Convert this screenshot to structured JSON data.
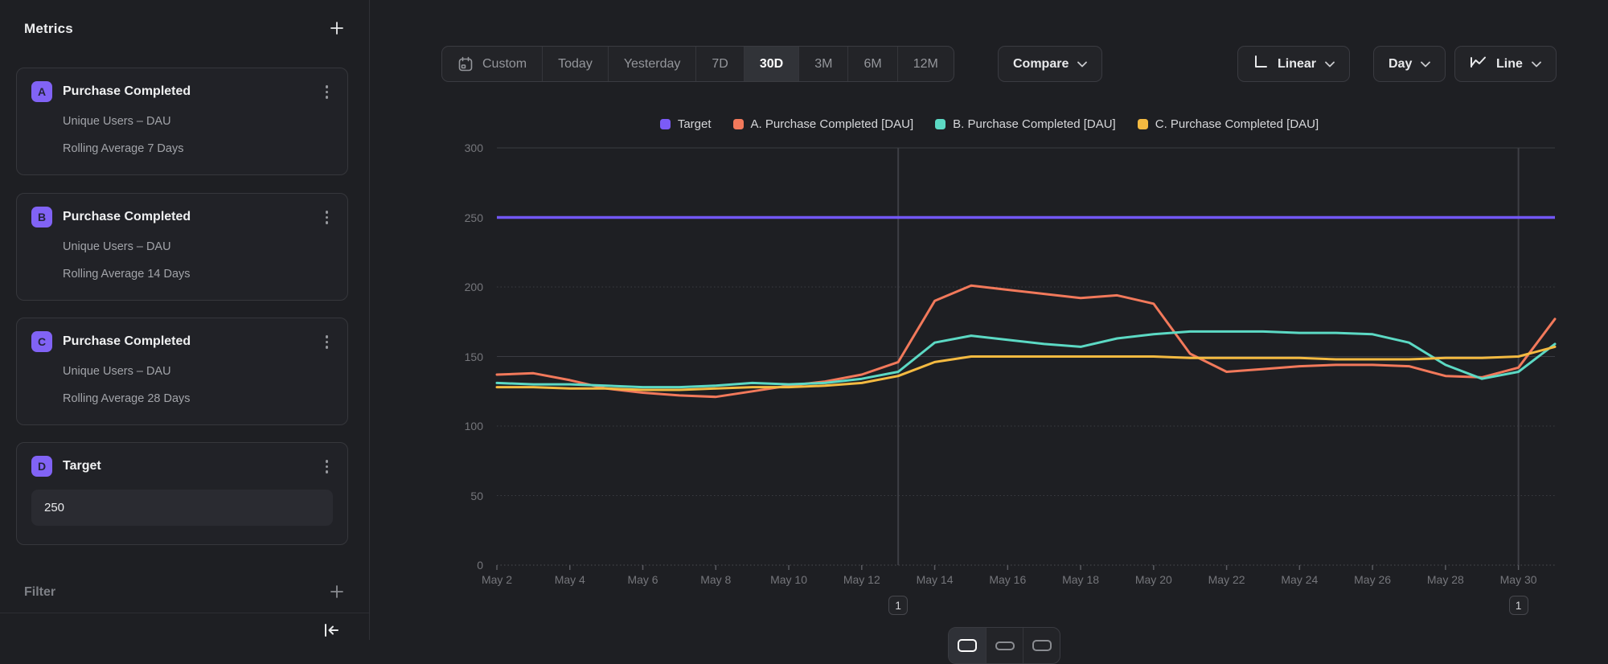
{
  "sidebar": {
    "title": "Metrics",
    "metrics": [
      {
        "letter": "A",
        "title": "Purchase Completed",
        "measure": "Unique Users – DAU",
        "transform": "Rolling Average 7 Days"
      },
      {
        "letter": "B",
        "title": "Purchase Completed",
        "measure": "Unique Users – DAU",
        "transform": "Rolling Average 14 Days"
      },
      {
        "letter": "C",
        "title": "Purchase Completed",
        "measure": "Unique Users – DAU",
        "transform": "Rolling Average 28 Days"
      }
    ],
    "target_metric": {
      "letter": "D",
      "title": "Target",
      "value": "250"
    },
    "filter_label": "Filter"
  },
  "toolbar": {
    "date_ranges": [
      "Custom",
      "Today",
      "Yesterday",
      "7D",
      "30D",
      "3M",
      "6M",
      "12M"
    ],
    "selected_range": "30D",
    "compare_label": "Compare",
    "scale_label": "Linear",
    "interval_label": "Day",
    "chart_type_label": "Line"
  },
  "colors": {
    "target": "#7257F5",
    "series_a": "#F2795B",
    "series_b": "#5CD9C4",
    "series_c": "#F4BA41"
  },
  "chart_data": {
    "type": "line",
    "x_unit": "date (May)",
    "xlim": [
      2,
      31
    ],
    "ylim": [
      0,
      300
    ],
    "y_ticks": [
      0,
      50,
      100,
      150,
      200,
      250,
      300
    ],
    "x_ticks": [
      {
        "day": 2,
        "label": "May 2"
      },
      {
        "day": 4,
        "label": "May 4"
      },
      {
        "day": 6,
        "label": "May 6"
      },
      {
        "day": 8,
        "label": "May 8"
      },
      {
        "day": 10,
        "label": "May 10"
      },
      {
        "day": 12,
        "label": "May 12"
      },
      {
        "day": 14,
        "label": "May 14"
      },
      {
        "day": 16,
        "label": "May 16"
      },
      {
        "day": 18,
        "label": "May 18"
      },
      {
        "day": 20,
        "label": "May 20"
      },
      {
        "day": 22,
        "label": "May 22"
      },
      {
        "day": 24,
        "label": "May 24"
      },
      {
        "day": 26,
        "label": "May 26"
      },
      {
        "day": 28,
        "label": "May 28"
      },
      {
        "day": 30,
        "label": "May 30"
      }
    ],
    "days": [
      2,
      3,
      4,
      5,
      6,
      7,
      8,
      9,
      10,
      11,
      12,
      13,
      14,
      15,
      16,
      17,
      18,
      19,
      20,
      21,
      22,
      23,
      24,
      25,
      26,
      27,
      28,
      29,
      30,
      31
    ],
    "target": {
      "name": "Target",
      "value": 250,
      "color": "#7257F5"
    },
    "series": [
      {
        "name": "A. Purchase Completed [DAU]",
        "color": "#F2795B",
        "values": [
          137,
          138,
          133,
          127,
          124,
          122,
          121,
          125,
          129,
          132,
          137,
          146,
          190,
          201,
          198,
          195,
          192,
          194,
          188,
          152,
          139,
          141,
          143,
          144,
          144,
          143,
          136,
          135,
          142,
          177
        ]
      },
      {
        "name": "B. Purchase Completed [DAU]",
        "color": "#5CD9C4",
        "values": [
          131,
          130,
          130,
          129,
          128,
          128,
          129,
          131,
          130,
          131,
          134,
          139,
          160,
          165,
          162,
          159,
          157,
          163,
          166,
          168,
          168,
          168,
          167,
          167,
          166,
          160,
          144,
          134,
          139,
          159
        ]
      },
      {
        "name": "C. Purchase Completed [DAU]",
        "color": "#F4BA41",
        "values": [
          128,
          128,
          127,
          127,
          126,
          126,
          127,
          128,
          128,
          129,
          131,
          136,
          146,
          150,
          150,
          150,
          150,
          150,
          150,
          149,
          149,
          149,
          149,
          148,
          148,
          148,
          149,
          149,
          150,
          157
        ]
      }
    ],
    "legend": [
      {
        "label": "Target",
        "color": "#7B5BF7"
      },
      {
        "label": "A. Purchase Completed [DAU]",
        "color": "#F2795B"
      },
      {
        "label": "B. Purchase Completed [DAU]",
        "color": "#5CD9C4"
      },
      {
        "label": "C. Purchase Completed [DAU]",
        "color": "#F4BA41"
      }
    ],
    "annotations": [
      {
        "day": 13,
        "label": "1"
      },
      {
        "day": 30,
        "label": "1"
      }
    ],
    "grid": "horizontal",
    "legend_position": "top-center"
  }
}
